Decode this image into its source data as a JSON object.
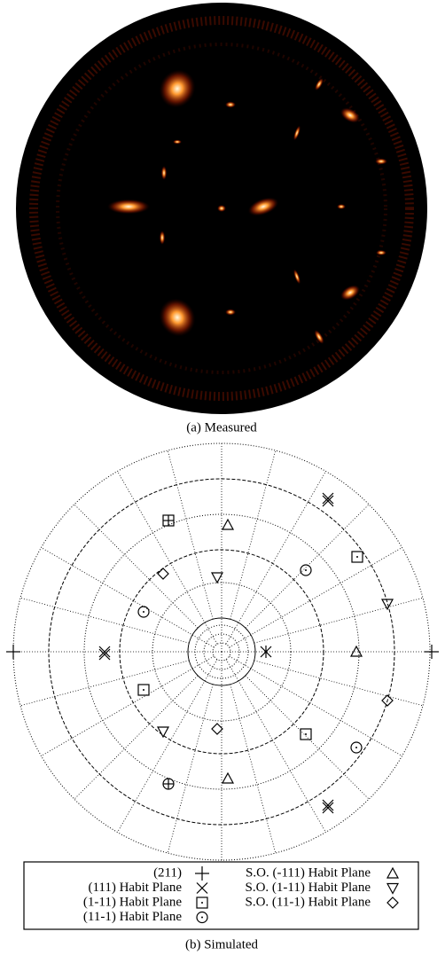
{
  "captions": {
    "a": "(a) Measured",
    "b": "(b) Simulated"
  },
  "legend": [
    "(211)",
    "(111) Habit Plane",
    "(1-11) Habit Plane",
    "(11-1) Habit Plane",
    "S.O. (-111) Habit Plane",
    "S.O. (1-11) Habit Plane",
    "S.O. (11-1) Habit Plane"
  ]
}
